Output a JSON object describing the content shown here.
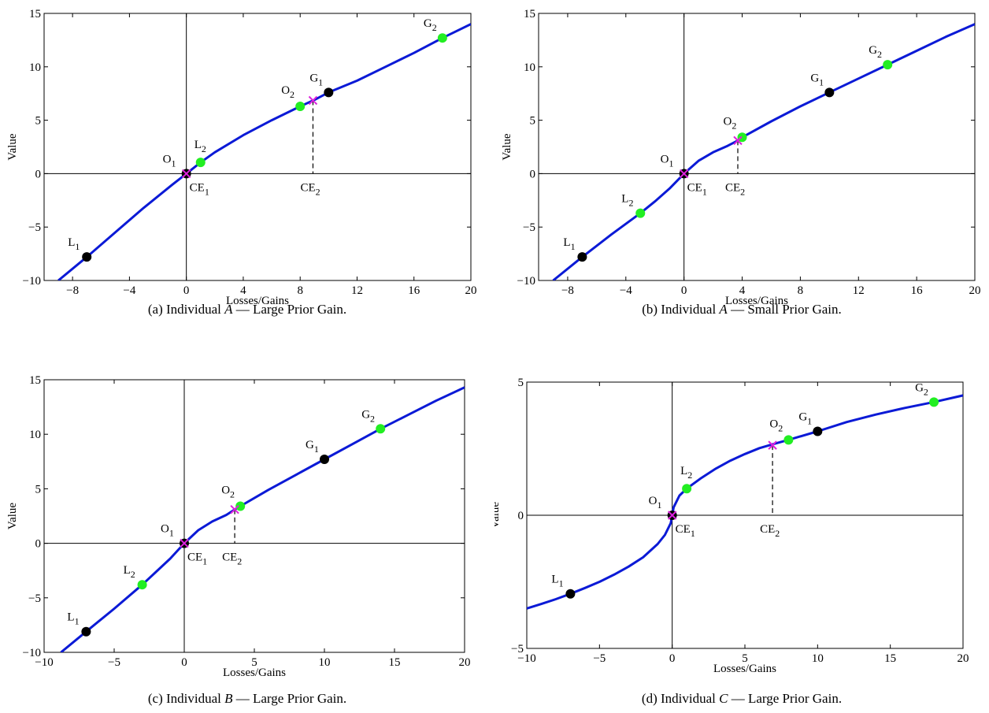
{
  "colors": {
    "curve": "#0b1ad6",
    "green_point": "#22ee22",
    "black_point": "#000000",
    "cross": "#dd22dd",
    "axis": "#000000"
  },
  "chart_data": [
    {
      "id": "a",
      "type": "line",
      "xlabel": "Losses/Gains",
      "ylabel": "Value",
      "xlim": [
        -10,
        20
      ],
      "ylim": [
        -10,
        15
      ],
      "xticks": [
        -8,
        -4,
        0,
        4,
        8,
        12,
        16,
        20
      ],
      "yticks": [
        -10,
        -5,
        0,
        5,
        10,
        15
      ],
      "xtick_labels": [
        "−8",
        "−4",
        "0",
        "4",
        "8",
        "12",
        "16",
        "20"
      ],
      "ytick_labels": [
        "−10",
        "−5",
        "0",
        "5",
        "10",
        "15"
      ],
      "series": [
        {
          "points": [
            [
              -9,
              -10
            ],
            [
              -7,
              -7.8
            ],
            [
              -5,
              -5.5
            ],
            [
              -3,
              -3.2
            ],
            [
              -1,
              -1.05
            ],
            [
              0,
              0
            ],
            [
              1,
              1.05
            ],
            [
              2,
              2
            ],
            [
              4,
              3.6
            ],
            [
              6,
              5
            ],
            [
              8,
              6.3
            ],
            [
              9,
              6.9
            ],
            [
              10,
              7.6
            ],
            [
              12,
              8.7
            ],
            [
              14,
              10
            ],
            [
              16,
              11.3
            ],
            [
              18,
              12.7
            ],
            [
              20,
              14
            ]
          ]
        }
      ],
      "points": [
        {
          "label": "L",
          "sub": "1",
          "x": -7,
          "y": -7.8,
          "kind": "black"
        },
        {
          "label": "O",
          "sub": "1",
          "x": 0,
          "y": 0,
          "kind": "black"
        },
        {
          "label": "L",
          "sub": "2",
          "x": 1,
          "y": 1.05,
          "kind": "green"
        },
        {
          "label": "O",
          "sub": "2",
          "x": 8,
          "y": 6.3,
          "kind": "green"
        },
        {
          "label": "G",
          "sub": "1",
          "x": 10,
          "y": 7.6,
          "kind": "black"
        },
        {
          "label": "G",
          "sub": "2",
          "x": 18,
          "y": 12.7,
          "kind": "green"
        }
      ],
      "ce": [
        {
          "label": "CE",
          "sub": "1",
          "x": 0,
          "y": 0
        },
        {
          "label": "CE",
          "sub": "2",
          "x": 8.9,
          "y": 6.85
        }
      ],
      "caption": {
        "prefix": "(a) Individual ",
        "italic": "A",
        "suffix": " — Large Prior Gain."
      }
    },
    {
      "id": "b",
      "type": "line",
      "xlabel": "Losses/Gains",
      "ylabel": "Value",
      "xlim": [
        -10,
        20
      ],
      "ylim": [
        -10,
        15
      ],
      "xticks": [
        -8,
        -4,
        0,
        4,
        8,
        12,
        16,
        20
      ],
      "yticks": [
        -10,
        -5,
        0,
        5,
        10,
        15
      ],
      "xtick_labels": [
        "−8",
        "−4",
        "0",
        "4",
        "8",
        "12",
        "16",
        "20"
      ],
      "ytick_labels": [
        "−10",
        "−5",
        "0",
        "5",
        "10",
        "15"
      ],
      "series": [
        {
          "points": [
            [
              -9,
              -10
            ],
            [
              -7,
              -7.8
            ],
            [
              -5,
              -5.7
            ],
            [
              -3,
              -3.7
            ],
            [
              -2,
              -2.6
            ],
            [
              -1,
              -1.4
            ],
            [
              0,
              0
            ],
            [
              1,
              1.2
            ],
            [
              2,
              2
            ],
            [
              3,
              2.6
            ],
            [
              3.7,
              3.1
            ],
            [
              4,
              3.4
            ],
            [
              6,
              4.9
            ],
            [
              8,
              6.3
            ],
            [
              10,
              7.6
            ],
            [
              12,
              8.9
            ],
            [
              14,
              10.2
            ],
            [
              16,
              11.5
            ],
            [
              18,
              12.8
            ],
            [
              20,
              14
            ]
          ]
        }
      ],
      "points": [
        {
          "label": "L",
          "sub": "1",
          "x": -7,
          "y": -7.8,
          "kind": "black"
        },
        {
          "label": "L",
          "sub": "2",
          "x": -3,
          "y": -3.7,
          "kind": "green"
        },
        {
          "label": "O",
          "sub": "1",
          "x": 0,
          "y": 0,
          "kind": "black"
        },
        {
          "label": "O",
          "sub": "2",
          "x": 4,
          "y": 3.4,
          "kind": "green"
        },
        {
          "label": "G",
          "sub": "1",
          "x": 10,
          "y": 7.6,
          "kind": "black"
        },
        {
          "label": "G",
          "sub": "2",
          "x": 14,
          "y": 10.2,
          "kind": "green"
        }
      ],
      "ce": [
        {
          "label": "CE",
          "sub": "1",
          "x": 0,
          "y": 0
        },
        {
          "label": "CE",
          "sub": "2",
          "x": 3.7,
          "y": 3.1
        }
      ],
      "caption": {
        "prefix": "(b) Individual ",
        "italic": "A",
        "suffix": " — Small Prior Gain."
      }
    },
    {
      "id": "c",
      "type": "line",
      "xlabel": "Losses/Gains",
      "ylabel": "Value",
      "xlim": [
        -10,
        20
      ],
      "ylim": [
        -10,
        15
      ],
      "xticks": [
        -10,
        -5,
        0,
        5,
        10,
        15,
        20
      ],
      "yticks": [
        -10,
        -5,
        0,
        5,
        10,
        15
      ],
      "xtick_labels": [
        "−10",
        "−5",
        "0",
        "5",
        "10",
        "15",
        "20"
      ],
      "ytick_labels": [
        "−10",
        "−5",
        "0",
        "5",
        "10",
        "15"
      ],
      "series": [
        {
          "points": [
            [
              -8.8,
              -10
            ],
            [
              -7,
              -8.1
            ],
            [
              -5,
              -6
            ],
            [
              -3,
              -3.8
            ],
            [
              -2,
              -2.6
            ],
            [
              -1,
              -1.4
            ],
            [
              0,
              0
            ],
            [
              1,
              1.2
            ],
            [
              2,
              2
            ],
            [
              3,
              2.6
            ],
            [
              3.6,
              3.1
            ],
            [
              4,
              3.4
            ],
            [
              6,
              4.9
            ],
            [
              8,
              6.3
            ],
            [
              10,
              7.7
            ],
            [
              12,
              9.1
            ],
            [
              14,
              10.5
            ],
            [
              16,
              11.8
            ],
            [
              18,
              13.1
            ],
            [
              20,
              14.3
            ]
          ]
        }
      ],
      "points": [
        {
          "label": "L",
          "sub": "1",
          "x": -7,
          "y": -8.1,
          "kind": "black"
        },
        {
          "label": "L",
          "sub": "2",
          "x": -3,
          "y": -3.8,
          "kind": "green"
        },
        {
          "label": "O",
          "sub": "1",
          "x": 0,
          "y": 0,
          "kind": "black"
        },
        {
          "label": "O",
          "sub": "2",
          "x": 4,
          "y": 3.4,
          "kind": "green"
        },
        {
          "label": "G",
          "sub": "1",
          "x": 10,
          "y": 7.7,
          "kind": "black"
        },
        {
          "label": "G",
          "sub": "2",
          "x": 14,
          "y": 10.5,
          "kind": "green"
        }
      ],
      "ce": [
        {
          "label": "CE",
          "sub": "1",
          "x": 0,
          "y": 0
        },
        {
          "label": "CE",
          "sub": "2",
          "x": 3.6,
          "y": 3.1
        }
      ],
      "caption": {
        "prefix": "(c) Individual ",
        "italic": "B",
        "suffix": " — Large Prior Gain."
      }
    },
    {
      "id": "d",
      "type": "line",
      "xlabel": "Losses/Gains",
      "ylabel": "Value",
      "xlim": [
        -10,
        20
      ],
      "ylim": [
        -5,
        5
      ],
      "xticks": [
        -10,
        -5,
        0,
        5,
        10,
        15,
        20
      ],
      "yticks": [
        -5,
        0,
        5
      ],
      "xtick_labels": [
        "−10",
        "−5",
        "0",
        "5",
        "10",
        "15",
        "20"
      ],
      "ytick_labels": [
        "−5",
        "0",
        "5"
      ],
      "series": [
        {
          "points": [
            [
              -10,
              -3.5
            ],
            [
              -9,
              -3.33
            ],
            [
              -8,
              -3.15
            ],
            [
              -7,
              -2.95
            ],
            [
              -6,
              -2.73
            ],
            [
              -5,
              -2.5
            ],
            [
              -4,
              -2.23
            ],
            [
              -3,
              -1.93
            ],
            [
              -2,
              -1.58
            ],
            [
              -1,
              -1.08
            ],
            [
              -0.5,
              -0.74
            ],
            [
              -0.1,
              -0.3
            ],
            [
              0,
              0
            ],
            [
              0.1,
              0.3
            ],
            [
              0.5,
              0.74
            ],
            [
              1,
              1
            ],
            [
              2,
              1.4
            ],
            [
              3,
              1.75
            ],
            [
              4,
              2.05
            ],
            [
              5,
              2.3
            ],
            [
              6,
              2.52
            ],
            [
              7,
              2.68
            ],
            [
              8,
              2.83
            ],
            [
              10,
              3.15
            ],
            [
              12,
              3.5
            ],
            [
              14,
              3.78
            ],
            [
              16,
              4.03
            ],
            [
              18,
              4.25
            ],
            [
              20,
              4.5
            ]
          ]
        }
      ],
      "points": [
        {
          "label": "L",
          "sub": "1",
          "x": -7,
          "y": -2.95,
          "kind": "black"
        },
        {
          "label": "O",
          "sub": "1",
          "x": 0,
          "y": 0,
          "kind": "black"
        },
        {
          "label": "L",
          "sub": "2",
          "x": 1,
          "y": 1.0,
          "kind": "green"
        },
        {
          "label": "O",
          "sub": "2",
          "x": 8,
          "y": 2.83,
          "kind": "green"
        },
        {
          "label": "G",
          "sub": "1",
          "x": 10,
          "y": 3.15,
          "kind": "black"
        },
        {
          "label": "G",
          "sub": "2",
          "x": 18,
          "y": 4.25,
          "kind": "green"
        }
      ],
      "ce": [
        {
          "label": "CE",
          "sub": "1",
          "x": 0,
          "y": 0
        },
        {
          "label": "CE",
          "sub": "2",
          "x": 6.9,
          "y": 2.63
        }
      ],
      "caption": {
        "prefix": "(d) Individual ",
        "italic": "C",
        "suffix": " — Large Prior Gain."
      }
    }
  ]
}
